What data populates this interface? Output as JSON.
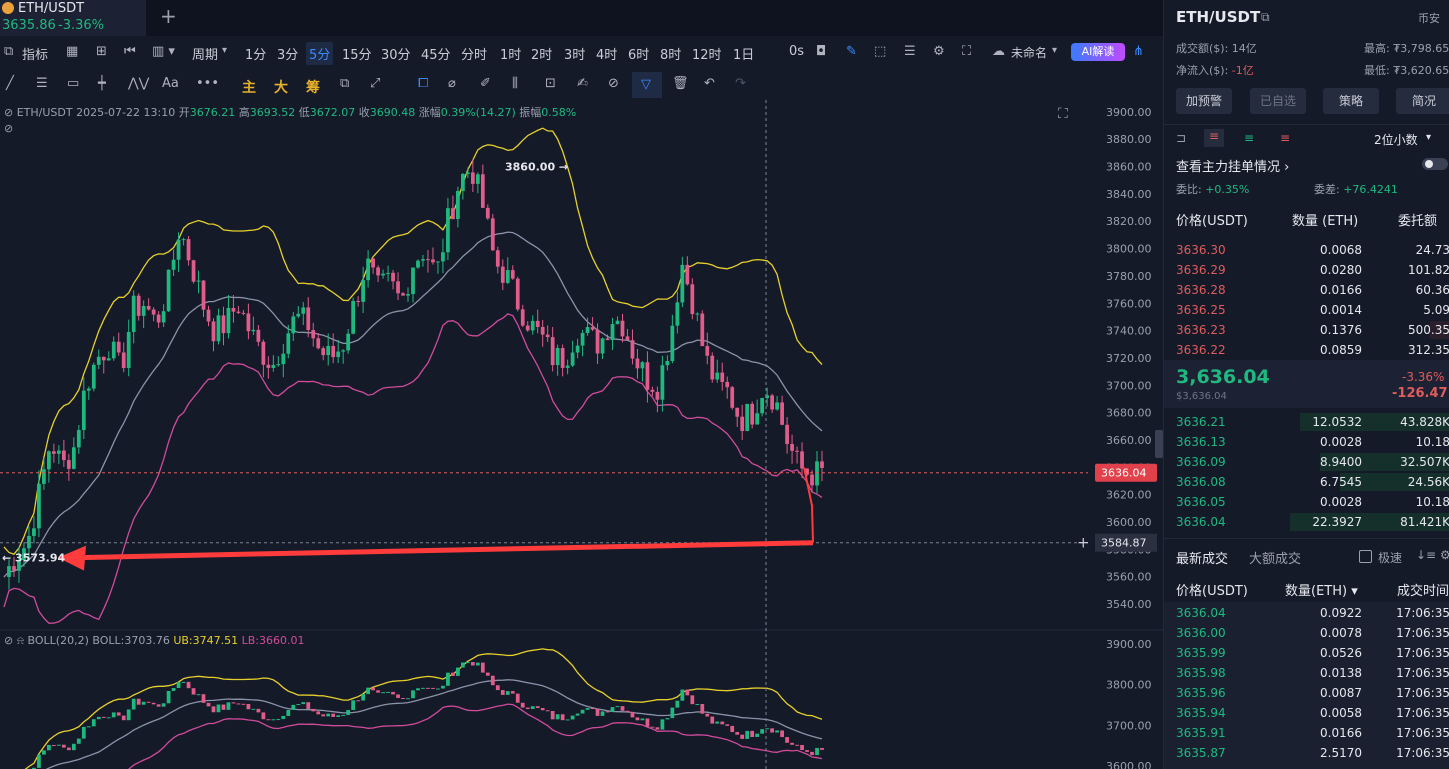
{
  "tab": {
    "symbol": "ETH/USDT",
    "price": "3635.86",
    "change": "-3.36%",
    "add": "+"
  },
  "toolbar": {
    "indicators": "指标",
    "period": "周期",
    "intervals": [
      "1分",
      "3分",
      "5分",
      "15分",
      "30分",
      "45分",
      "分时",
      "1时",
      "2时",
      "3时",
      "4时",
      "6时",
      "8时",
      "12时",
      "1日"
    ],
    "active_interval": "5分",
    "seconds": "0s",
    "layout_name": "未命名",
    "ai": "AI解读"
  },
  "toolbar2": {
    "main": "主",
    "big": "大",
    "chip": "筹"
  },
  "ohlc": {
    "symbol": "ETH/USDT",
    "datetime": "2025-07-22 13:10",
    "open_label": "开",
    "open": "3676.21",
    "high_label": "高",
    "high": "3693.52",
    "low_label": "低",
    "low": "3672.07",
    "close_label": "收",
    "close": "3690.48",
    "change_label": "涨幅",
    "change": "0.39%(14.27)",
    "amp_label": "振幅",
    "amp": "0.58%"
  },
  "boll": {
    "name": "BOLL(20,2)",
    "mid": "BOLL:3703.76",
    "ub": "UB:3747.51",
    "lb": "LB:3660.01"
  },
  "chart_data": [
    {
      "type": "candlestick",
      "series": [
        {
          "name": "ETH/USDT 5分"
        }
      ],
      "y_ticks": [
        3900,
        3880,
        3860,
        3840,
        3820,
        3800,
        3780,
        3760,
        3740,
        3720,
        3700,
        3680,
        3660,
        3640,
        3620,
        3600,
        3580,
        3560,
        3540
      ],
      "ylim": [
        3532,
        3905
      ],
      "annotations": {
        "high": "3860.00",
        "low": "3573.94",
        "current_price": "3636.04",
        "crosshair_price": "3584.87"
      },
      "path_points": [
        3560,
        3575,
        3585,
        3620,
        3660,
        3640,
        3655,
        3700,
        3720,
        3730,
        3710,
        3755,
        3760,
        3745,
        3770,
        3815,
        3790,
        3760,
        3740,
        3745,
        3760,
        3740,
        3725,
        3715,
        3735,
        3750,
        3745,
        3725,
        3720,
        3730,
        3760,
        3790,
        3770,
        3775,
        3760,
        3790,
        3800,
        3780,
        3820,
        3850,
        3860,
        3830,
        3790,
        3780,
        3760,
        3745,
        3735,
        3720,
        3720,
        3740,
        3735,
        3730,
        3750,
        3745,
        3720,
        3705,
        3700,
        3735,
        3790,
        3760,
        3720,
        3700,
        3695,
        3675,
        3680,
        3700,
        3690,
        3660,
        3640,
        3635,
        3636
      ]
    },
    {
      "type": "line",
      "series": [
        {
          "name": "BOLL"
        },
        {
          "name": "UB"
        },
        {
          "name": "LB"
        }
      ],
      "y_ticks": [
        3900,
        3800,
        3700,
        3600
      ],
      "ylim": [
        3595,
        3910
      ]
    }
  ],
  "right": {
    "symbol": "ETH/USDT",
    "exchange": "币安",
    "turnover_label": "成交额($):",
    "turnover": "14亿",
    "high_label": "最高:",
    "high": "₮3,798.65",
    "inflow_label": "净流入($):",
    "inflow": "-1亿",
    "low_label": "最低:",
    "low": "₮3,620.65",
    "buttons": [
      "加预警",
      "已自选",
      "策略",
      "简况"
    ],
    "decimals": "2位小数",
    "orders_link": "查看主力挂单情况",
    "ratio_label": "委比:",
    "ratio": "+0.35%",
    "diff_label": "委差:",
    "diff": "+76.4241",
    "ob_headers": [
      "价格(USDT)",
      "数量 (ETH)",
      "委托额"
    ],
    "asks": [
      {
        "p": "3636.30",
        "q": "0.0068",
        "a": "24.73"
      },
      {
        "p": "3636.29",
        "q": "0.0280",
        "a": "101.82"
      },
      {
        "p": "3636.28",
        "q": "0.0166",
        "a": "60.36"
      },
      {
        "p": "3636.25",
        "q": "0.0014",
        "a": "5.09"
      },
      {
        "p": "3636.23",
        "q": "0.1376",
        "a": "500.35"
      },
      {
        "p": "3636.22",
        "q": "0.0859",
        "a": "312.35"
      }
    ],
    "last_price": "3,636.04",
    "last_usd": "$3,636.04",
    "last_pct": "-3.36%",
    "last_chg": "-126.47",
    "bids": [
      {
        "p": "3636.21",
        "q": "12.0532",
        "a": "43.828K"
      },
      {
        "p": "3636.13",
        "q": "0.0028",
        "a": "10.18"
      },
      {
        "p": "3636.09",
        "q": "8.9400",
        "a": "32.507K"
      },
      {
        "p": "3636.08",
        "q": "6.7545",
        "a": "24.56K"
      },
      {
        "p": "3636.05",
        "q": "0.0028",
        "a": "10.18"
      },
      {
        "p": "3636.04",
        "q": "22.3927",
        "a": "81.421K"
      }
    ],
    "trades_tab": "最新成交",
    "big_tab": "大额成交",
    "fast": "极速",
    "trade_headers": [
      "价格(USDT)",
      "数量(ETH)",
      "成交时间"
    ],
    "trades": [
      {
        "p": "3636.04",
        "q": "0.0922",
        "t": "17:06:35"
      },
      {
        "p": "3636.00",
        "q": "0.0078",
        "t": "17:06:35"
      },
      {
        "p": "3635.99",
        "q": "0.0526",
        "t": "17:06:35"
      },
      {
        "p": "3635.98",
        "q": "0.0138",
        "t": "17:06:35"
      },
      {
        "p": "3635.96",
        "q": "0.0087",
        "t": "17:06:35"
      },
      {
        "p": "3635.94",
        "q": "0.0058",
        "t": "17:06:35"
      },
      {
        "p": "3635.91",
        "q": "0.0166",
        "t": "17:06:35"
      },
      {
        "p": "3635.87",
        "q": "2.5170",
        "t": "17:06:35"
      }
    ]
  }
}
